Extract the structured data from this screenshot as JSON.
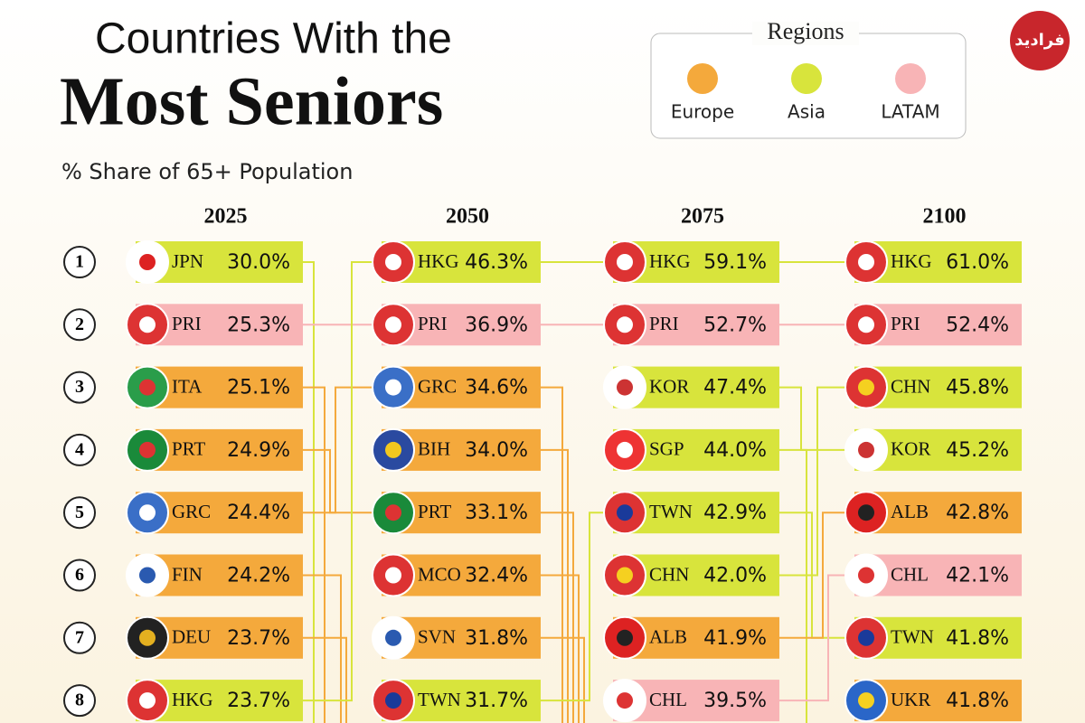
{
  "header": {
    "title_line1": "Countries With the",
    "title_line2": "Most Seniors",
    "subtitle": "% Share of 65+ Population",
    "logo": "فرادید"
  },
  "legend": {
    "title": "Regions",
    "items": [
      {
        "label": "Europe",
        "color": "#f4a93c"
      },
      {
        "label": "Asia",
        "color": "#d8e43c"
      },
      {
        "label": "LATAM",
        "color": "#f8b4b6"
      }
    ]
  },
  "ranks": [
    "1",
    "2",
    "3",
    "4",
    "5",
    "6",
    "7",
    "8"
  ],
  "columns": [
    {
      "year": "2025",
      "entries": [
        {
          "code": "JPN",
          "value": "30.0%",
          "region": 1
        },
        {
          "code": "PRI",
          "value": "25.3%",
          "region": 2
        },
        {
          "code": "ITA",
          "value": "25.1%",
          "region": 0
        },
        {
          "code": "PRT",
          "value": "24.9%",
          "region": 0
        },
        {
          "code": "GRC",
          "value": "24.4%",
          "region": 0
        },
        {
          "code": "FIN",
          "value": "24.2%",
          "region": 0
        },
        {
          "code": "DEU",
          "value": "23.7%",
          "region": 0
        },
        {
          "code": "HKG",
          "value": "23.7%",
          "region": 1
        }
      ]
    },
    {
      "year": "2050",
      "entries": [
        {
          "code": "HKG",
          "value": "46.3%",
          "region": 1
        },
        {
          "code": "PRI",
          "value": "36.9%",
          "region": 2
        },
        {
          "code": "GRC",
          "value": "34.6%",
          "region": 0
        },
        {
          "code": "BIH",
          "value": "34.0%",
          "region": 0
        },
        {
          "code": "PRT",
          "value": "33.1%",
          "region": 0
        },
        {
          "code": "MCO",
          "value": "32.4%",
          "region": 0
        },
        {
          "code": "SVN",
          "value": "31.8%",
          "region": 0
        },
        {
          "code": "TWN",
          "value": "31.7%",
          "region": 1
        }
      ]
    },
    {
      "year": "2075",
      "entries": [
        {
          "code": "HKG",
          "value": "59.1%",
          "region": 1
        },
        {
          "code": "PRI",
          "value": "52.7%",
          "region": 2
        },
        {
          "code": "KOR",
          "value": "47.4%",
          "region": 1
        },
        {
          "code": "SGP",
          "value": "44.0%",
          "region": 1
        },
        {
          "code": "TWN",
          "value": "42.9%",
          "region": 1
        },
        {
          "code": "CHN",
          "value": "42.0%",
          "region": 1
        },
        {
          "code": "ALB",
          "value": "41.9%",
          "region": 0
        },
        {
          "code": "CHL",
          "value": "39.5%",
          "region": 2
        }
      ]
    },
    {
      "year": "2100",
      "entries": [
        {
          "code": "HKG",
          "value": "61.0%",
          "region": 1
        },
        {
          "code": "PRI",
          "value": "52.4%",
          "region": 2
        },
        {
          "code": "CHN",
          "value": "45.8%",
          "region": 1
        },
        {
          "code": "KOR",
          "value": "45.2%",
          "region": 1
        },
        {
          "code": "ALB",
          "value": "42.8%",
          "region": 0
        },
        {
          "code": "CHL",
          "value": "42.1%",
          "region": 2
        },
        {
          "code": "TWN",
          "value": "41.8%",
          "region": 1
        },
        {
          "code": "UKR",
          "value": "41.8%",
          "region": 0
        }
      ]
    }
  ]
}
